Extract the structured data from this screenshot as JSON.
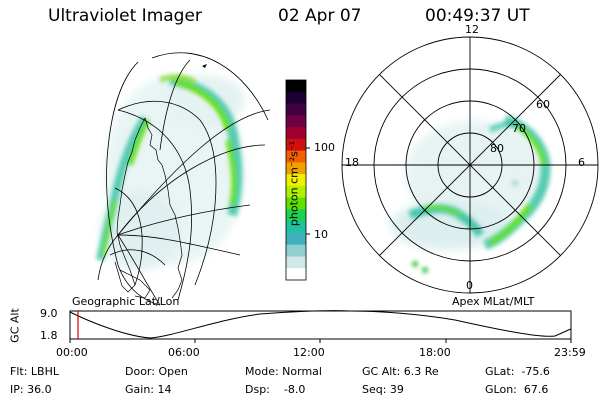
{
  "header": {
    "instrument": "Ultraviolet Imager",
    "date": "02 Apr 07",
    "time": "00:49:37 UT"
  },
  "colorbar": {
    "label": "photon cm⁻²s⁻¹",
    "ticks": [
      "100",
      "10"
    ],
    "colors": [
      "#000000",
      "#1a0033",
      "#400040",
      "#700045",
      "#a00030",
      "#d01010",
      "#f06000",
      "#f0a000",
      "#f0f000",
      "#b0f000",
      "#60e000",
      "#20d050",
      "#20c0a0",
      "#40b0c0",
      "#90d0d0",
      "#d0e8e8",
      "#ffffff"
    ]
  },
  "maps": {
    "left_label": "Geographic Lat/Lon",
    "right_label": "Apex MLat/MLT",
    "polar": {
      "mlt_labels": [
        "12",
        "18",
        "6",
        "0"
      ],
      "lat_labels": [
        "60",
        "70",
        "80"
      ]
    }
  },
  "altitude_plot": {
    "axis_title": "GC Alt",
    "y_ticks": [
      "9.0",
      "1.8"
    ],
    "x_ticks": [
      "00:00",
      "06:00",
      "12:00",
      "18:00",
      "23:59"
    ],
    "marker_color": "#dd0000"
  },
  "info": {
    "flt": "Flt: LBHL",
    "door": "Door: Open",
    "mode": "Mode: Normal",
    "gc_alt": "GC Alt: 6.3 Re",
    "glat": "GLat:  -75.6",
    "ip": "IP: 36.0",
    "gain": "Gain: 14",
    "dsp": "Dsp:    -8.0",
    "seq": "Seq: 39",
    "glon": "GLon:  67.6"
  }
}
